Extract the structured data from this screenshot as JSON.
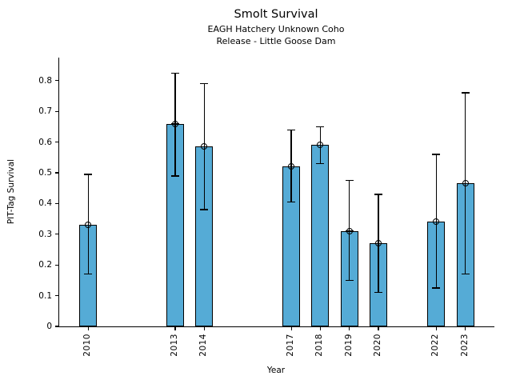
{
  "figure": {
    "title": "Smolt Survival",
    "subtitle1": "EAGH Hatchery Unknown Coho",
    "subtitle2": "Release - Little Goose Dam",
    "xlabel": "Year",
    "ylabel": "PIT-Tag Survival"
  },
  "chart_data": {
    "type": "bar",
    "title": "Smolt Survival",
    "subtitle": [
      "EAGH Hatchery Unknown Coho",
      "Release - Little Goose Dam"
    ],
    "xlabel": "Year",
    "ylabel": "PIT-Tag Survival",
    "categories": [
      "2010",
      "2013",
      "2014",
      "2017",
      "2018",
      "2019",
      "2020",
      "2022",
      "2023"
    ],
    "values": [
      0.33,
      0.66,
      0.585,
      0.52,
      0.59,
      0.31,
      0.27,
      0.34,
      0.465
    ],
    "error_low": [
      0.17,
      0.49,
      0.38,
      0.405,
      0.53,
      0.15,
      0.11,
      0.125,
      0.17
    ],
    "error_high": [
      0.495,
      0.825,
      0.79,
      0.64,
      0.65,
      0.475,
      0.43,
      0.56,
      0.76
    ],
    "yticks": [
      0,
      0.1,
      0.2,
      0.3,
      0.4,
      0.5,
      0.6,
      0.7,
      0.8
    ],
    "ytick_labels": [
      "0",
      "0.1",
      "0.2",
      "0.3",
      "0.4",
      "0.5",
      "0.6",
      "0.7",
      "0.8"
    ],
    "ylim": [
      0,
      0.875
    ],
    "xlim": [
      2009,
      2024
    ],
    "grid": false,
    "legend": "none",
    "bar_color": "#55ABD6",
    "bar_edge_color": "#000000",
    "errorbar_color": "#000000",
    "marker_style": "open-circle-cross"
  }
}
